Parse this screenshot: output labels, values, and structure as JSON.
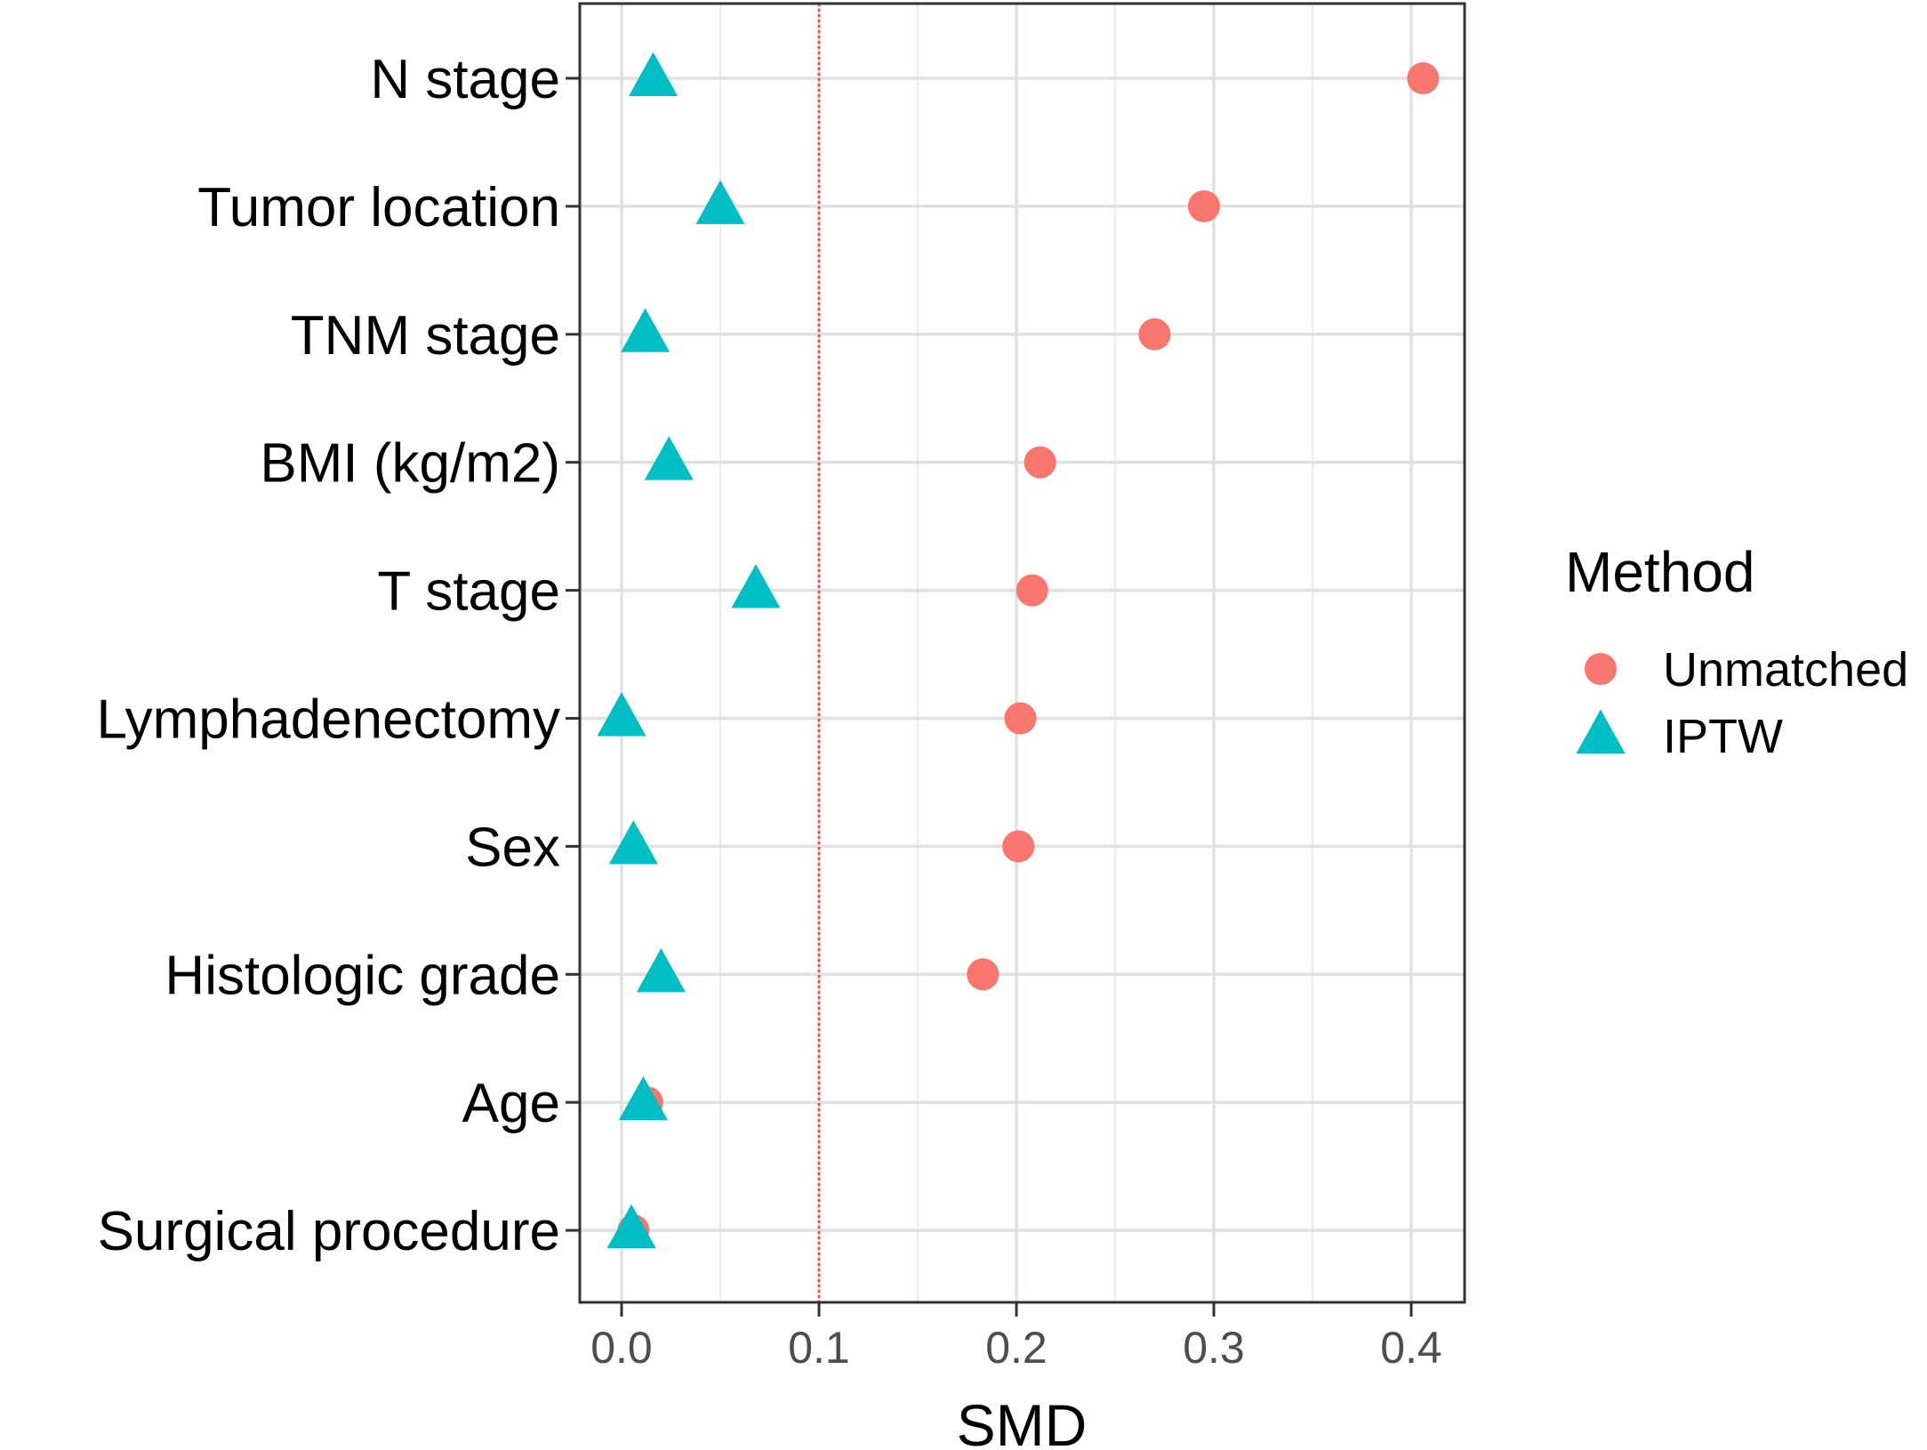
{
  "chart_data": {
    "type": "scatter",
    "xlabel": "SMD",
    "xlim": [
      -0.02,
      0.43
    ],
    "xticks": [
      0.0,
      0.1,
      0.2,
      0.3,
      0.4
    ],
    "xtick_labels": [
      "0.0",
      "0.1",
      "0.2",
      "0.3",
      "0.4"
    ],
    "reference_line": {
      "x": 0.1,
      "color": "#e8433f",
      "style": "dotted"
    },
    "categories": [
      "N  stage",
      "Tumor location",
      "TNM stage",
      "BMI (kg/m2)",
      "T stage",
      "Lymphadenectomy",
      "Sex",
      "Histologic grade",
      "Age",
      "Surgical procedure"
    ],
    "series": [
      {
        "name": "Unmatched",
        "marker": "circle",
        "color": "#f8766d",
        "values": [
          0.406,
          0.295,
          0.27,
          0.212,
          0.208,
          0.202,
          0.201,
          0.183,
          0.013,
          0.006
        ]
      },
      {
        "name": "IPTW",
        "marker": "triangle",
        "color": "#00bfc4",
        "values": [
          0.016,
          0.05,
          0.012,
          0.024,
          0.068,
          0.0,
          0.006,
          0.02,
          0.011,
          0.005
        ]
      }
    ],
    "legend": {
      "title": "Method",
      "position": "right"
    },
    "grid": true
  }
}
